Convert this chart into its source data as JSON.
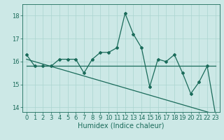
{
  "xlabel": "Humidex (Indice chaleur)",
  "ylabel": "",
  "bg_color": "#cce8e6",
  "line_color": "#1a6b5a",
  "grid_color": "#aad4d0",
  "x_data": [
    0,
    1,
    2,
    3,
    4,
    5,
    6,
    7,
    8,
    9,
    10,
    11,
    12,
    13,
    14,
    15,
    16,
    17,
    18,
    19,
    20,
    21,
    22,
    23
  ],
  "y_main": [
    16.3,
    15.8,
    15.8,
    15.8,
    16.1,
    16.1,
    16.1,
    15.5,
    16.1,
    16.4,
    16.4,
    16.6,
    18.1,
    17.2,
    16.6,
    14.9,
    16.1,
    16.0,
    16.3,
    15.5,
    14.6,
    15.1,
    15.8,
    13.7
  ],
  "y_flat": 15.8,
  "trend_start": 16.1,
  "trend_end": 13.7,
  "ylim": [
    13.8,
    18.5
  ],
  "xlim": [
    -0.5,
    23.5
  ],
  "yticks": [
    14,
    15,
    16,
    17,
    18
  ],
  "xticks": [
    0,
    1,
    2,
    3,
    4,
    5,
    6,
    7,
    8,
    9,
    10,
    11,
    12,
    13,
    14,
    15,
    16,
    17,
    18,
    19,
    20,
    21,
    22,
    23
  ],
  "tick_fontsize": 6,
  "label_fontsize": 7
}
